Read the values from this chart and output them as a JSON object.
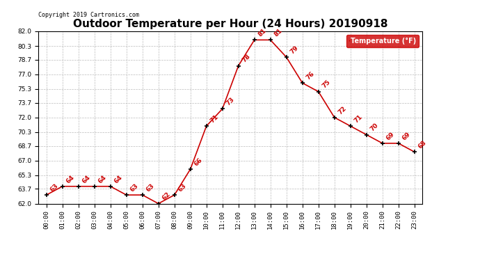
{
  "title": "Outdoor Temperature per Hour (24 Hours) 20190918",
  "copyright": "Copyright 2019 Cartronics.com",
  "legend_label": "Temperature (°F)",
  "hours": [
    "00:00",
    "01:00",
    "02:00",
    "03:00",
    "04:00",
    "05:00",
    "06:00",
    "07:00",
    "08:00",
    "09:00",
    "10:00",
    "11:00",
    "12:00",
    "13:00",
    "14:00",
    "15:00",
    "16:00",
    "17:00",
    "18:00",
    "19:00",
    "20:00",
    "21:00",
    "22:00",
    "23:00"
  ],
  "temperatures": [
    63,
    64,
    64,
    64,
    64,
    63,
    63,
    62,
    63,
    66,
    71,
    73,
    78,
    81,
    81,
    79,
    76,
    75,
    72,
    71,
    70,
    69,
    69,
    68
  ],
  "line_color": "#cc0000",
  "marker_color": "#000000",
  "bg_color": "#ffffff",
  "grid_color": "#bbbbbb",
  "ylim_min": 62.0,
  "ylim_max": 82.0,
  "yticks": [
    62.0,
    63.7,
    65.3,
    67.0,
    68.7,
    70.3,
    72.0,
    73.7,
    75.3,
    77.0,
    78.7,
    80.3,
    82.0
  ],
  "title_fontsize": 11,
  "annotation_fontsize": 6.5,
  "tick_fontsize": 6.5,
  "copyright_fontsize": 6
}
